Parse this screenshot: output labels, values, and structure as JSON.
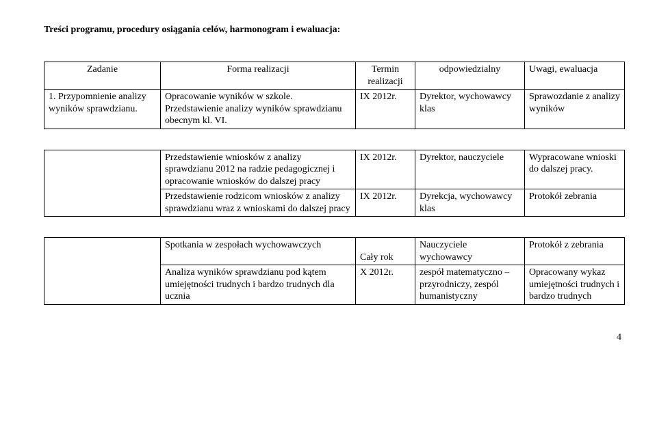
{
  "heading": "Treści programu, procedury osiągania celów, harmonogram i ewaluacja:",
  "table1": {
    "head": {
      "c1": "Zadanie",
      "c2": "Forma realizacji",
      "c3": "Termin realizacji",
      "c4": "odpowiedzialny",
      "c5": "Uwagi, ewaluacja"
    },
    "row1": {
      "c1": "1. Przypomnienie analizy wyników sprawdzianu.",
      "c2": "Opracowanie wyników w szkole. Przedstawienie analizy wyników sprawdzianu obecnym kl. VI.",
      "c3": "IX 2012r.",
      "c4": "Dyrektor, wychowawcy klas",
      "c5": "Sprawozdanie z analizy wyników"
    }
  },
  "table2": {
    "row1": {
      "c2": "Przedstawienie wniosków z analizy sprawdzianu 2012 na radzie pedagogicznej i opracowanie wniosków do dalszej pracy",
      "c3": "IX 2012r.",
      "c4": "Dyrektor, nauczyciele",
      "c5": "Wypracowane wnioski do dalszej pracy."
    },
    "row2": {
      "c2": "Przedstawienie rodzicom wniosków z analizy sprawdzianu  wraz z wnioskami do dalszej pracy",
      "c3": "IX 2012r.",
      "c4": "Dyrekcja, wychowawcy klas",
      "c5": "Protokół zebrania"
    }
  },
  "table3": {
    "row1": {
      "c2": "Spotkania w zespołach wychowawczych",
      "c3": "Cały rok",
      "c4": "Nauczyciele wychowawcy",
      "c5": "Protokół z zebrania"
    },
    "row2": {
      "c2": "Analiza wyników sprawdzianu pod kątem umiejętności trudnych i bardzo trudnych dla ucznia",
      "c3": "X 2012r.",
      "c4": "zespół matematyczno – przyrodniczy, zespól humanistyczny",
      "c5": "Opracowany wykaz umiejętności trudnych i bardzo trudnych"
    }
  },
  "pageNumber": "4"
}
